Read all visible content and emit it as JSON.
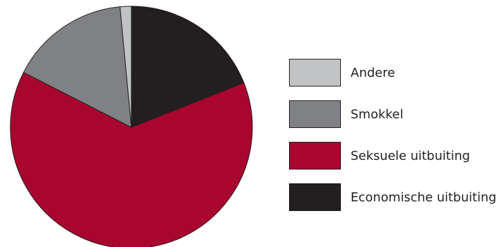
{
  "chart_data": {
    "type": "pie",
    "title": "",
    "start_angle_deg": 0,
    "direction": "clockwise",
    "slices": [
      {
        "label": "Economische uitbuiting",
        "value": 19,
        "color": "#231f20"
      },
      {
        "label": "Seksuele uitbuiting",
        "value": 63.5,
        "color": "#a8052f"
      },
      {
        "label": "Smokkel",
        "value": 16,
        "color": "#808184"
      },
      {
        "label": "Andere",
        "value": 1.5,
        "color": "#c0c2c4"
      }
    ],
    "legend": {
      "position": "right",
      "order": [
        "Andere",
        "Smokkel",
        "Seksuele uitbuiting",
        "Economische uitbuiting"
      ]
    }
  }
}
